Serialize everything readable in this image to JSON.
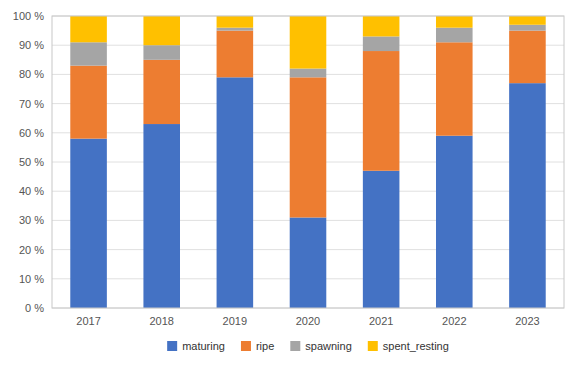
{
  "chart_data": {
    "type": "bar",
    "stacked": true,
    "categories": [
      "2017",
      "2018",
      "2019",
      "2020",
      "2021",
      "2022",
      "2023"
    ],
    "series": [
      {
        "name": "maturing",
        "color": "#4472C4",
        "values": [
          58,
          63,
          79,
          31,
          47,
          59,
          77
        ]
      },
      {
        "name": "ripe",
        "color": "#ED7D31",
        "values": [
          25,
          22,
          16,
          48,
          41,
          32,
          18
        ]
      },
      {
        "name": "spawning",
        "color": "#A5A5A5",
        "values": [
          8,
          5,
          1,
          3,
          5,
          5,
          2
        ]
      },
      {
        "name": "spent_resting",
        "color": "#FFC000",
        "values": [
          9,
          10,
          4,
          18,
          7,
          4,
          3
        ]
      }
    ],
    "ylim": [
      0,
      100
    ],
    "yticks": [
      {
        "value": 0,
        "label": "0 %"
      },
      {
        "value": 10,
        "label": "10 %"
      },
      {
        "value": 20,
        "label": "20 %"
      },
      {
        "value": 30,
        "label": "30 %"
      },
      {
        "value": 40,
        "label": "40 %"
      },
      {
        "value": 50,
        "label": "50 %"
      },
      {
        "value": 60,
        "label": "60 %"
      },
      {
        "value": 70,
        "label": "70 %"
      },
      {
        "value": 80,
        "label": "80 %"
      },
      {
        "value": 90,
        "label": "90 %"
      },
      {
        "value": 100,
        "label": "100 %"
      }
    ],
    "grid": true,
    "legend": "bottom"
  }
}
